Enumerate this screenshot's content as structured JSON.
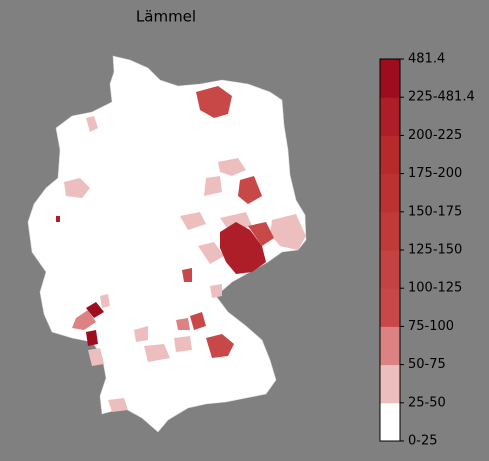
{
  "title": "Lämmel",
  "colorbar": {
    "ticks": [
      "0-25",
      "25-50",
      "50-75",
      "75-100",
      "100-125",
      "125-150",
      "150-175",
      "175-200",
      "200-225",
      "225-481.4",
      "481.4"
    ],
    "colors": [
      "#ffffff",
      "#ecbebe",
      "#dc8282",
      "#c84848",
      "#c44242",
      "#c03a3a",
      "#bc3232",
      "#b62a2c",
      "#ae1e28",
      "#9e0c20"
    ]
  }
}
